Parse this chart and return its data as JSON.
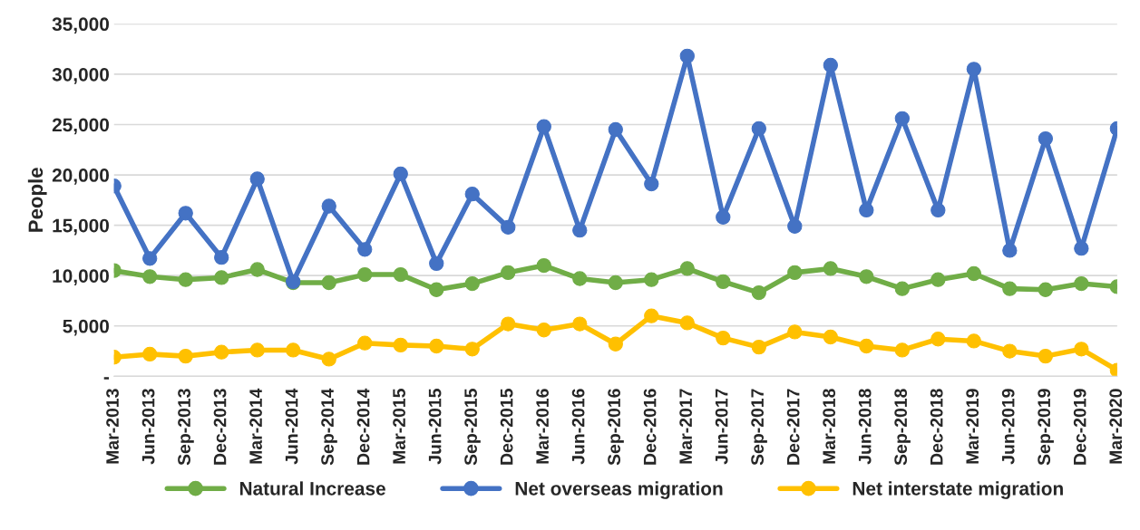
{
  "chart_data": {
    "type": "line",
    "ylabel": "People",
    "categories": [
      "Mar-2013",
      "Jun-2013",
      "Sep-2013",
      "Dec-2013",
      "Mar-2014",
      "Jun-2014",
      "Sep-2014",
      "Dec-2014",
      "Mar-2015",
      "Jun-2015",
      "Sep-2015",
      "Dec-2015",
      "Mar-2016",
      "Jun-2016",
      "Sep-2016",
      "Dec-2016",
      "Mar-2017",
      "Jun-2017",
      "Sep-2017",
      "Dec-2017",
      "Mar-2018",
      "Jun-2018",
      "Sep-2018",
      "Dec-2018",
      "Mar-2019",
      "Jun-2019",
      "Sep-2019",
      "Dec-2019",
      "Mar-2020"
    ],
    "series": [
      {
        "name": "Natural Increase",
        "color": "#70ad47",
        "values": [
          10500,
          9900,
          9600,
          9800,
          10600,
          9300,
          9300,
          10100,
          10100,
          8600,
          9200,
          10300,
          11000,
          9700,
          9300,
          9600,
          10700,
          9400,
          8300,
          10300,
          10700,
          9900,
          8700,
          9600,
          10200,
          8700,
          8600,
          9200,
          8900
        ]
      },
      {
        "name": "Net overseas migration",
        "color": "#4472c4",
        "values": [
          18900,
          11700,
          16200,
          11800,
          19600,
          9400,
          16900,
          12600,
          20100,
          11200,
          18100,
          14800,
          24800,
          14500,
          24500,
          19100,
          31800,
          15800,
          24600,
          14900,
          30900,
          16500,
          25600,
          16500,
          30500,
          12500,
          23600,
          12700,
          24600
        ]
      },
      {
        "name": "Net interstate migration",
        "color": "#ffc000",
        "values": [
          1900,
          2200,
          2000,
          2400,
          2600,
          2600,
          1700,
          3300,
          3100,
          3000,
          2700,
          5200,
          4600,
          5200,
          3200,
          6000,
          5300,
          3800,
          2900,
          4400,
          3900,
          3000,
          2600,
          3700,
          3500,
          2500,
          2000,
          2700,
          600
        ]
      }
    ],
    "ylim": [
      0,
      35000
    ],
    "yticks": [
      {
        "value": 0,
        "label": "-"
      },
      {
        "value": 5000,
        "label": "5,000"
      },
      {
        "value": 10000,
        "label": "10,000"
      },
      {
        "value": 15000,
        "label": "15,000"
      },
      {
        "value": 20000,
        "label": "20,000"
      },
      {
        "value": 25000,
        "label": "25,000"
      },
      {
        "value": 30000,
        "label": "30,000"
      },
      {
        "value": 35000,
        "label": "35,000"
      }
    ],
    "grid": "y",
    "legend": "bottom",
    "marker": "circle",
    "line_style": "solid"
  }
}
